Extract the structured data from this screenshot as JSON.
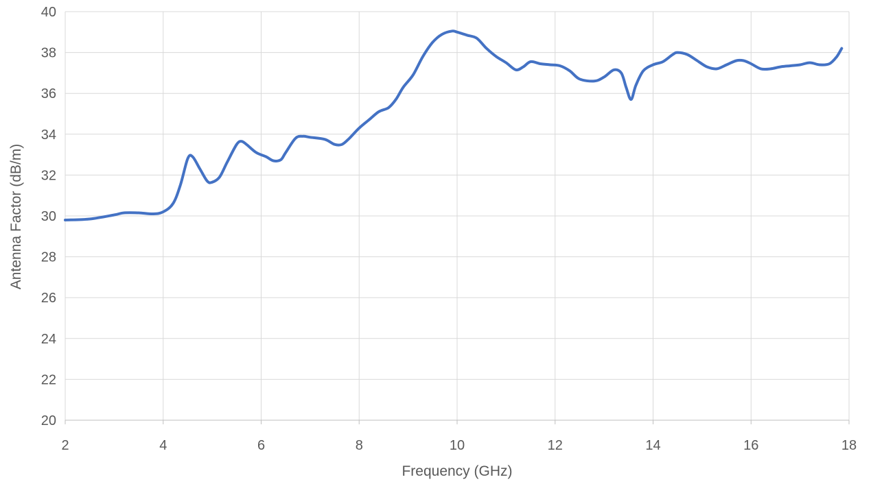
{
  "chart_data": {
    "type": "line",
    "title": "",
    "xlabel": "Frequency (GHz)",
    "ylabel": "Antenna Factor (dB/m)",
    "xlim": [
      2,
      18
    ],
    "ylim": [
      20,
      40
    ],
    "x_ticks": [
      2,
      4,
      6,
      8,
      10,
      12,
      14,
      16,
      18
    ],
    "y_ticks": [
      20,
      22,
      24,
      26,
      28,
      30,
      32,
      34,
      36,
      38,
      40
    ],
    "grid": true,
    "legend": "none",
    "series": [
      {
        "color": "#4472C4",
        "x": [
          2.0,
          2.5,
          3.0,
          3.2,
          3.5,
          3.8,
          4.0,
          4.2,
          4.35,
          4.5,
          4.6,
          4.75,
          4.9,
          5.0,
          5.15,
          5.3,
          5.5,
          5.6,
          5.7,
          5.9,
          6.1,
          6.25,
          6.4,
          6.5,
          6.7,
          6.85,
          7.0,
          7.3,
          7.5,
          7.65,
          7.8,
          8.0,
          8.2,
          8.4,
          8.6,
          8.75,
          8.9,
          9.1,
          9.3,
          9.5,
          9.7,
          9.9,
          10.0,
          10.2,
          10.4,
          10.6,
          10.8,
          11.0,
          11.2,
          11.35,
          11.5,
          11.7,
          11.9,
          12.1,
          12.3,
          12.5,
          12.8,
          13.0,
          13.2,
          13.35,
          13.45,
          13.55,
          13.65,
          13.8,
          14.0,
          14.2,
          14.4,
          14.5,
          14.7,
          14.9,
          15.1,
          15.3,
          15.5,
          15.7,
          15.85,
          16.0,
          16.2,
          16.4,
          16.6,
          16.8,
          17.0,
          17.2,
          17.4,
          17.6,
          17.75,
          17.85
        ],
        "y": [
          29.8,
          29.85,
          30.05,
          30.15,
          30.15,
          30.1,
          30.2,
          30.6,
          31.5,
          32.8,
          32.9,
          32.3,
          31.7,
          31.65,
          31.9,
          32.6,
          33.5,
          33.65,
          33.5,
          33.1,
          32.9,
          32.7,
          32.75,
          33.1,
          33.8,
          33.9,
          33.85,
          33.75,
          33.5,
          33.5,
          33.8,
          34.3,
          34.7,
          35.1,
          35.3,
          35.7,
          36.3,
          36.9,
          37.8,
          38.5,
          38.9,
          39.05,
          39.0,
          38.85,
          38.7,
          38.2,
          37.8,
          37.5,
          37.15,
          37.3,
          37.55,
          37.45,
          37.4,
          37.35,
          37.1,
          36.7,
          36.6,
          36.8,
          37.15,
          37.0,
          36.3,
          35.7,
          36.4,
          37.1,
          37.4,
          37.55,
          37.9,
          38.0,
          37.9,
          37.6,
          37.3,
          37.2,
          37.4,
          37.6,
          37.6,
          37.45,
          37.2,
          37.2,
          37.3,
          37.35,
          37.4,
          37.5,
          37.4,
          37.45,
          37.8,
          38.2
        ]
      }
    ]
  }
}
